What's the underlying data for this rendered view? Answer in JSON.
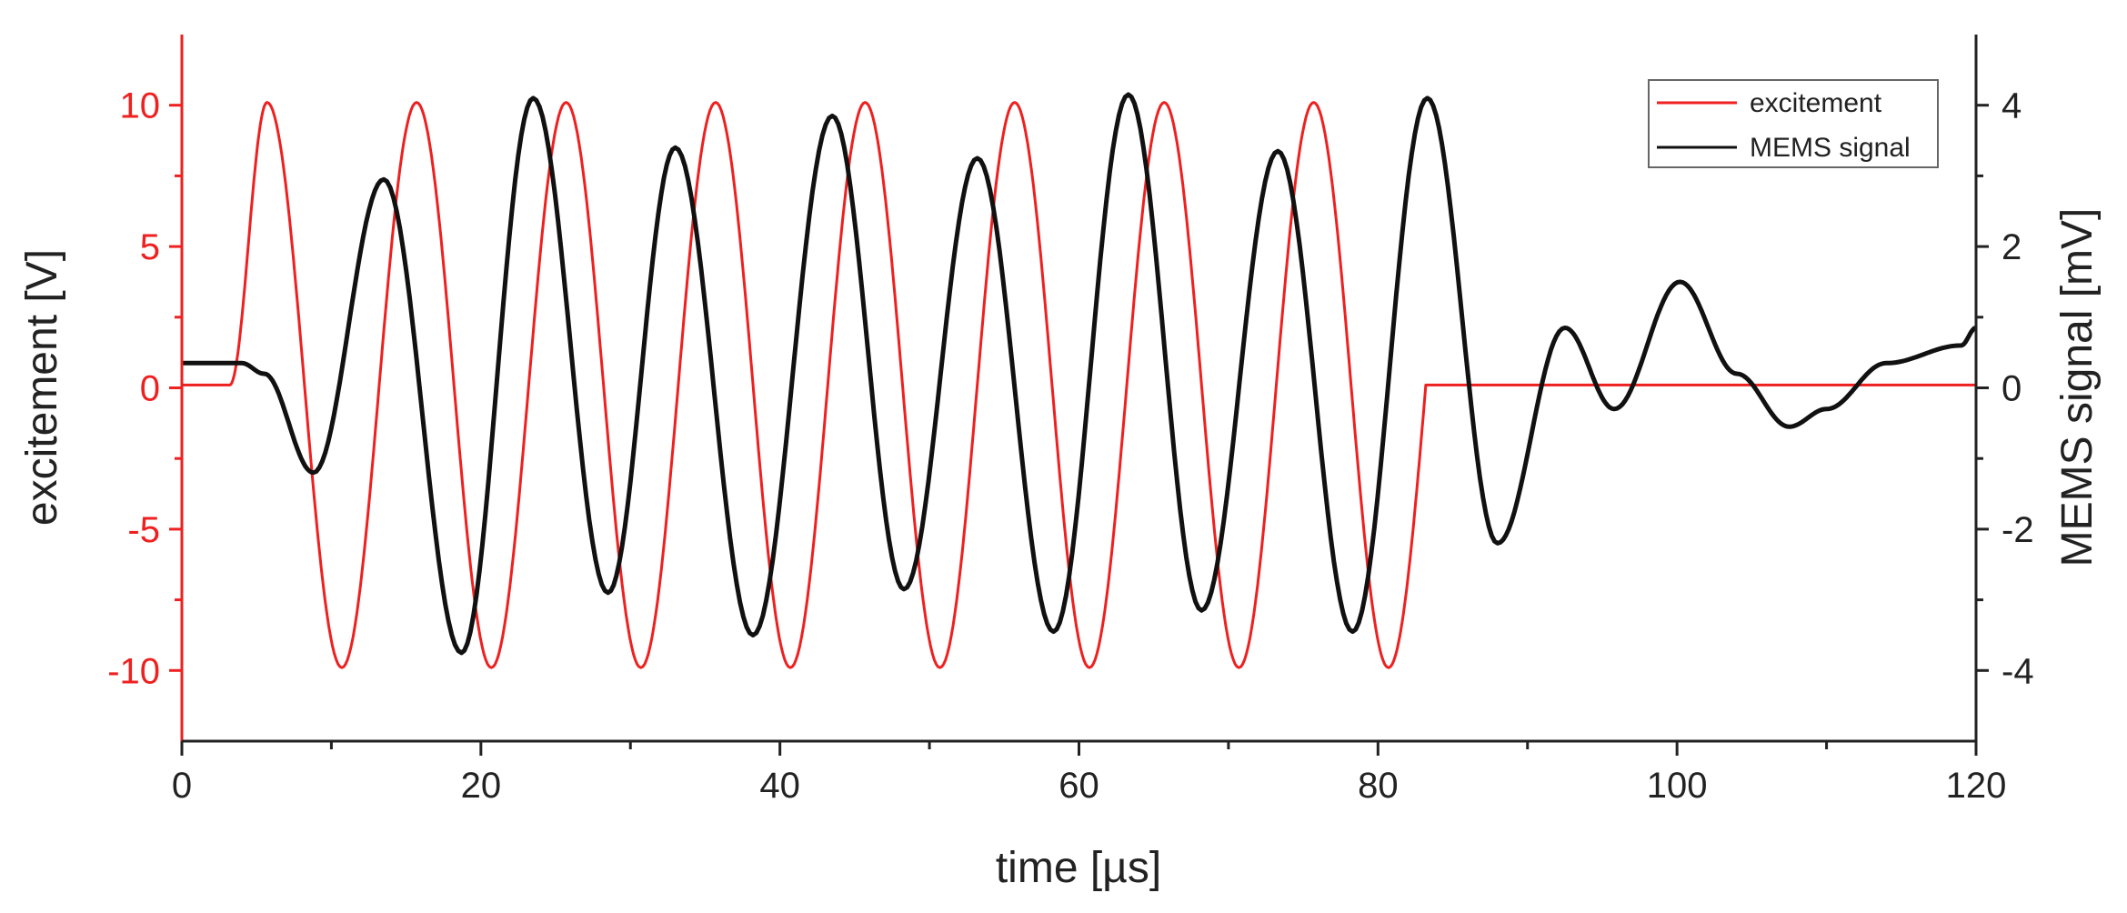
{
  "chart_data": {
    "type": "line",
    "x": {
      "label": "time [µs]",
      "range": [
        0,
        120
      ],
      "ticks": [
        0,
        20,
        40,
        60,
        80,
        100,
        120
      ],
      "minor_ticks": [
        10,
        30,
        50,
        70,
        90,
        110
      ]
    },
    "y_left": {
      "label": "excitement [V]",
      "range": [
        -12.5,
        12.5
      ],
      "ticks": [
        -10,
        -5,
        0,
        5,
        10
      ],
      "color": "#ee2020"
    },
    "y_right": {
      "label": "MEMS signal [mV]",
      "range": [
        -5,
        5
      ],
      "ticks": [
        -4,
        -2,
        0,
        2,
        4
      ],
      "color": "#222222"
    },
    "grid": false,
    "legend": {
      "position": "top-right"
    },
    "series": [
      {
        "name": "excitement",
        "axis": "left",
        "color": "#ee2020",
        "x": [
          0,
          3.2,
          5.7,
          10.7,
          15.7,
          20.7,
          25.7,
          30.7,
          35.7,
          40.7,
          45.7,
          50.7,
          55.7,
          60.7,
          65.7,
          70.7,
          75.7,
          80.7,
          83.2,
          120
        ],
        "y": [
          0.1,
          0.1,
          10.1,
          -9.9,
          10.1,
          -9.9,
          10.1,
          -9.9,
          10.1,
          -9.9,
          10.1,
          -9.9,
          10.1,
          -9.9,
          10.1,
          -9.9,
          10.1,
          -9.9,
          0.1,
          0.1
        ],
        "curve": "sinusoidal-burst"
      },
      {
        "name": "MEMS signal",
        "axis": "right",
        "color": "#111111",
        "x": [
          0,
          4,
          5.5,
          8.8,
          13.5,
          18.7,
          23.5,
          28.5,
          33,
          38.2,
          43.5,
          48.3,
          53.2,
          58.3,
          63.3,
          68.2,
          73.3,
          78.3,
          83.3,
          88,
          92.5,
          95.8,
          100.2,
          104,
          107.5,
          110,
          114,
          119,
          120
        ],
        "y": [
          0.35,
          0.35,
          0.2,
          -1.2,
          2.95,
          -3.75,
          4.1,
          -2.9,
          3.4,
          -3.5,
          3.85,
          -2.85,
          3.25,
          -3.45,
          4.15,
          -3.15,
          3.35,
          -3.45,
          4.1,
          -2.2,
          0.85,
          -0.3,
          1.5,
          0.2,
          -0.55,
          -0.3,
          0.35,
          0.6,
          0.85
        ]
      }
    ]
  }
}
